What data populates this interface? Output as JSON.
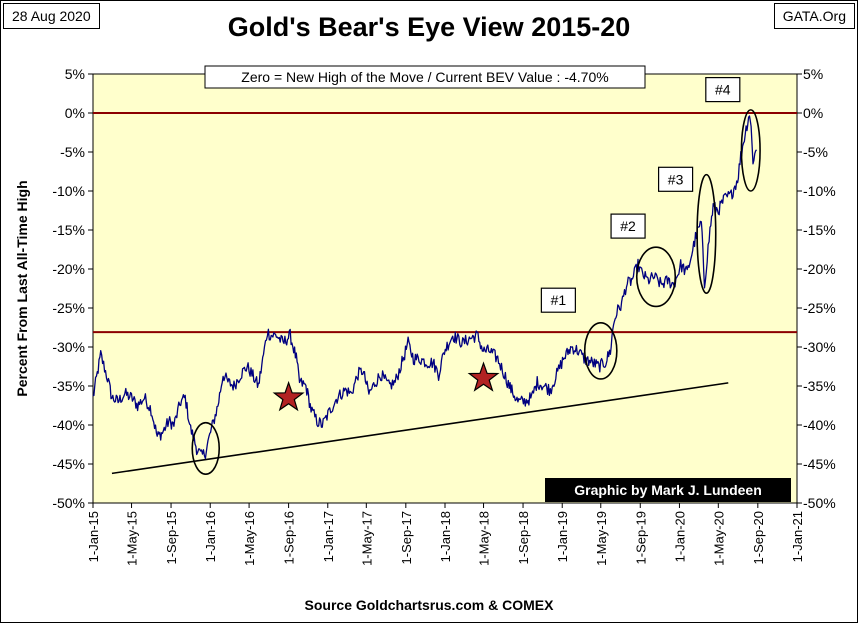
{
  "header": {
    "date": "28 Aug 2020",
    "site": "GATA.Org",
    "title": "Gold's Bear's Eye View 2015-20"
  },
  "footer": {
    "source": "Source Goldchartsrus.com & COMEX"
  },
  "colors": {
    "plot_bg": "#ffffcc",
    "series": "#000080",
    "ref_line": "#8b0000",
    "star": "#b22222",
    "credit_bg": "#000000",
    "credit_text": "#ffffff"
  },
  "chart_data": {
    "type": "line",
    "title": "Gold's Bear's Eye View 2015-20",
    "ylabel": "Percent  From Last  All-Time  High",
    "xlabel": "",
    "ylim": [
      -50,
      5
    ],
    "xlim": [
      "2015-01-01",
      "2021-01-01"
    ],
    "y_ticks": [
      "5%",
      "0%",
      "-5%",
      "-10%",
      "-15%",
      "-20%",
      "-25%",
      "-30%",
      "-35%",
      "-40%",
      "-45%",
      "-50%"
    ],
    "x_ticks": [
      {
        "label": "1-Jan-15",
        "date": "2015-01-01"
      },
      {
        "label": "1-May-15",
        "date": "2015-05-01"
      },
      {
        "label": "1-Sep-15",
        "date": "2015-09-01"
      },
      {
        "label": "1-Jan-16",
        "date": "2016-01-01"
      },
      {
        "label": "1-May-16",
        "date": "2016-05-01"
      },
      {
        "label": "1-Sep-16",
        "date": "2016-09-01"
      },
      {
        "label": "1-Jan-17",
        "date": "2017-01-01"
      },
      {
        "label": "1-May-17",
        "date": "2017-05-01"
      },
      {
        "label": "1-Sep-17",
        "date": "2017-09-01"
      },
      {
        "label": "1-Jan-18",
        "date": "2018-01-01"
      },
      {
        "label": "1-May-18",
        "date": "2018-05-01"
      },
      {
        "label": "1-Sep-18",
        "date": "2018-09-01"
      },
      {
        "label": "1-Jan-19",
        "date": "2019-01-01"
      },
      {
        "label": "1-May-19",
        "date": "2019-05-01"
      },
      {
        "label": "1-Sep-19",
        "date": "2019-09-01"
      },
      {
        "label": "1-Jan-20",
        "date": "2020-01-01"
      },
      {
        "label": "1-May-20",
        "date": "2020-05-01"
      },
      {
        "label": "1-Sep-20",
        "date": "2020-09-01"
      },
      {
        "label": "1-Jan-21",
        "date": "2021-01-01"
      }
    ],
    "grid": false,
    "legend_text": "Zero = New High of the Move / Current  BEV Value : -4.70%",
    "credit": "Graphic by Mark J. Lundeen",
    "reference_lines": [
      {
        "y": 0
      },
      {
        "y": -28.1
      }
    ],
    "trend_line": {
      "x": [
        "2015-03-01",
        "2020-06-01"
      ],
      "y": [
        -46.2,
        -34.6
      ]
    },
    "series": [
      {
        "x": [
          "2015-01-01",
          "2015-01-25",
          "2015-02-15",
          "2015-03-01",
          "2015-03-20",
          "2015-04-10",
          "2015-05-01",
          "2015-05-20",
          "2015-06-10",
          "2015-07-01",
          "2015-07-20",
          "2015-08-05",
          "2015-08-25",
          "2015-09-10",
          "2015-10-01",
          "2015-10-15",
          "2015-11-01",
          "2015-11-20",
          "2015-12-05",
          "2015-12-17",
          "2016-01-05",
          "2016-01-25",
          "2016-02-10",
          "2016-02-25",
          "2016-03-15",
          "2016-04-05",
          "2016-04-25",
          "2016-05-10",
          "2016-05-30",
          "2016-06-15",
          "2016-06-27",
          "2016-07-06",
          "2016-07-25",
          "2016-08-15",
          "2016-09-06",
          "2016-09-25",
          "2016-10-05",
          "2016-10-25",
          "2016-11-10",
          "2016-11-28",
          "2016-12-15",
          "2017-01-10",
          "2017-01-30",
          "2017-02-25",
          "2017-03-15",
          "2017-04-05",
          "2017-04-20",
          "2017-05-09",
          "2017-05-30",
          "2017-06-15",
          "2017-07-10",
          "2017-07-30",
          "2017-08-20",
          "2017-09-08",
          "2017-09-25",
          "2017-10-15",
          "2017-11-05",
          "2017-11-25",
          "2017-12-12",
          "2017-12-30",
          "2018-01-25",
          "2018-02-10",
          "2018-02-25",
          "2018-03-15",
          "2018-04-11",
          "2018-04-30",
          "2018-05-20",
          "2018-06-14",
          "2018-07-05",
          "2018-07-20",
          "2018-08-16",
          "2018-09-05",
          "2018-09-28",
          "2018-10-15",
          "2018-11-05",
          "2018-11-25",
          "2018-12-15",
          "2019-01-05",
          "2019-01-30",
          "2019-02-20",
          "2019-03-10",
          "2019-04-05",
          "2019-04-25",
          "2019-05-15",
          "2019-05-31",
          "2019-06-10",
          "2019-06-20",
          "2019-07-05",
          "2019-07-20",
          "2019-08-05",
          "2019-08-25",
          "2019-09-05",
          "2019-09-25",
          "2019-10-15",
          "2019-11-05",
          "2019-11-25",
          "2019-12-15",
          "2020-01-05",
          "2020-01-25",
          "2020-02-20",
          "2020-03-09",
          "2020-03-19",
          "2020-04-05",
          "2020-04-15",
          "2020-05-01",
          "2020-05-20",
          "2020-06-10",
          "2020-06-30",
          "2020-07-10",
          "2020-07-24",
          "2020-08-06",
          "2020-08-11",
          "2020-08-17",
          "2020-08-28"
        ],
        "values": [
          -36.5,
          -31.0,
          -34.0,
          -36.5,
          -37.0,
          -36.0,
          -36.5,
          -37.5,
          -36.5,
          -38.0,
          -41.5,
          -41.0,
          -39.5,
          -40.0,
          -37.0,
          -36.5,
          -40.5,
          -43.0,
          -44.0,
          -43.5,
          -40.5,
          -37.5,
          -33.5,
          -34.5,
          -35.0,
          -33.5,
          -32.5,
          -33.5,
          -35.0,
          -31.0,
          -28.0,
          -28.5,
          -28.5,
          -29.5,
          -28.5,
          -31.5,
          -34.5,
          -35.0,
          -38.0,
          -39.5,
          -40.0,
          -38.0,
          -36.5,
          -35.5,
          -36.0,
          -33.5,
          -33.0,
          -36.0,
          -34.5,
          -33.5,
          -35.0,
          -34.5,
          -32.0,
          -29.5,
          -31.5,
          -31.5,
          -32.0,
          -32.0,
          -33.5,
          -30.5,
          -28.5,
          -29.0,
          -29.5,
          -29.0,
          -28.5,
          -30.5,
          -30.5,
          -31.5,
          -33.5,
          -35.0,
          -37.0,
          -37.0,
          -36.5,
          -34.5,
          -35.0,
          -35.5,
          -33.5,
          -31.5,
          -30.0,
          -30.5,
          -31.5,
          -32.0,
          -32.5,
          -32.0,
          -30.5,
          -27.0,
          -25.5,
          -24.5,
          -22.0,
          -21.5,
          -19.5,
          -20.5,
          -21.5,
          -21.0,
          -22.0,
          -21.5,
          -22.0,
          -19.5,
          -20.5,
          -16.0,
          -14.0,
          -22.0,
          -15.0,
          -12.0,
          -12.5,
          -11.0,
          -10.5,
          -8.5,
          -5.5,
          -2.5,
          0.0,
          -2.0,
          -6.0,
          -4.7
        ]
      }
    ],
    "annotations": [
      {
        "text": "#1",
        "x": "2018-12-20",
        "y": -24.0
      },
      {
        "text": "#2",
        "x": "2019-07-25",
        "y": -14.5
      },
      {
        "text": "#3",
        "x": "2019-12-20",
        "y": -8.5
      },
      {
        "text": "#4",
        "x": "2020-05-15",
        "y": 3.0
      }
    ],
    "circles": [
      {
        "cx": "2015-12-18",
        "cy": -43.0,
        "rx_days": 42,
        "ry": 3.3
      },
      {
        "cx": "2019-05-01",
        "cy": -30.5,
        "rx_days": 50,
        "ry": 3.6
      },
      {
        "cx": "2019-10-20",
        "cy": -21.0,
        "rx_days": 60,
        "ry": 3.8
      },
      {
        "cx": "2020-03-25",
        "cy": -15.5,
        "rx_days": 29,
        "ry": 7.6
      },
      {
        "cx": "2020-08-10",
        "cy": -4.8,
        "rx_days": 29,
        "ry": 5.2
      }
    ],
    "stars": [
      {
        "x": "2016-09-01",
        "y": -36.5
      },
      {
        "x": "2018-05-01",
        "y": -34.0
      }
    ]
  }
}
